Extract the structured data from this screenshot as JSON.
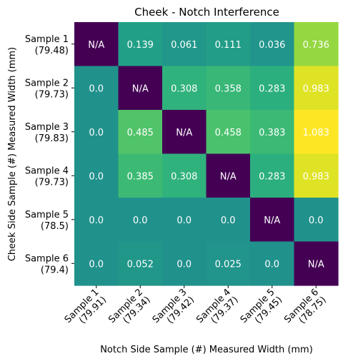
{
  "chart_data": {
    "type": "heatmap",
    "title": "Cheek - Notch Interference",
    "xlabel": "Notch Side Sample (#) Measured Width (mm)",
    "ylabel": "Cheek Side Sample (#) Measured Width (mm)",
    "x_categories": [
      {
        "name": "Sample 1",
        "width": "(79.91)"
      },
      {
        "name": "Sample 2",
        "width": "(79.34)"
      },
      {
        "name": "Sample 3",
        "width": "(79.42)"
      },
      {
        "name": "Sample 4",
        "width": "(79.37)"
      },
      {
        "name": "Sample 5",
        "width": "(79.45)"
      },
      {
        "name": "Sample 6",
        "width": "(78.75)"
      }
    ],
    "y_categories": [
      {
        "name": "Sample 1",
        "width": "(79.48)"
      },
      {
        "name": "Sample 2",
        "width": "(79.73)"
      },
      {
        "name": "Sample 3",
        "width": "(79.83)"
      },
      {
        "name": "Sample 4",
        "width": "(79.73)"
      },
      {
        "name": "Sample 5",
        "width": "(78.5)"
      },
      {
        "name": "Sample 6",
        "width": "(79.4)"
      }
    ],
    "values": [
      [
        "N/A",
        "0.139",
        "0.061",
        "0.111",
        "0.036",
        "0.736"
      ],
      [
        "0.0",
        "N/A",
        "0.308",
        "0.358",
        "0.283",
        "0.983"
      ],
      [
        "0.0",
        "0.485",
        "N/A",
        "0.458",
        "0.383",
        "1.083"
      ],
      [
        "0.0",
        "0.385",
        "0.308",
        "N/A",
        "0.283",
        "0.983"
      ],
      [
        "0.0",
        "0.0",
        "0.0",
        "0.0",
        "N/A",
        "0.0"
      ],
      [
        "0.0",
        "0.052",
        "0.0",
        "0.025",
        "0.0",
        "N/A"
      ]
    ],
    "colormap": "viridis",
    "na_color": "#440154",
    "color_range": [
      -1.083,
      1.083
    ],
    "grid": false,
    "legend": "none"
  }
}
